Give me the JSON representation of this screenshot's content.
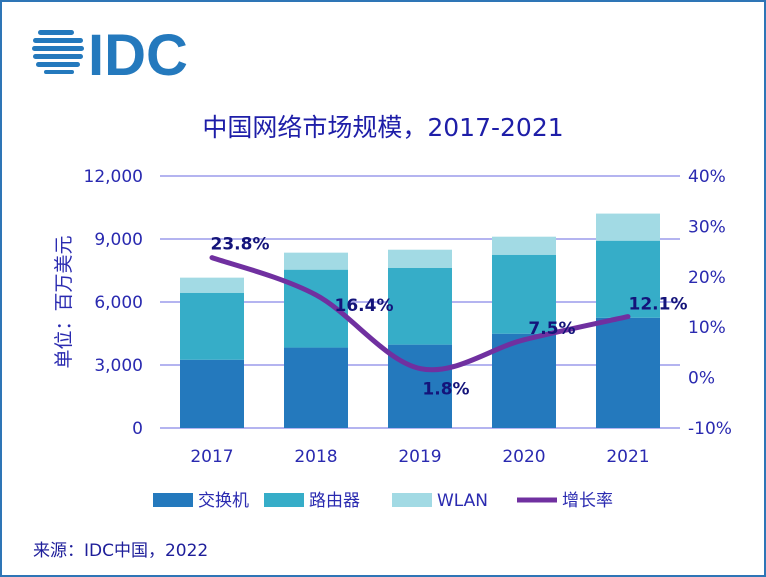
{
  "logo_text": "IDC",
  "source": "来源：IDC中国，2022",
  "colors": {
    "switch": "#2479BD",
    "router": "#36ADC8",
    "wlan": "#A2DAE4",
    "growth": "#7030A0",
    "text": "#2A2AB0",
    "labels": "#14147A",
    "grid": "#B4B4F0",
    "frame": "#2E75B6"
  },
  "chart_data": {
    "type": "bar",
    "stacked": true,
    "title": "中国网络市场规模，2017-2021",
    "ylabel": "单位：百万美元",
    "categories": [
      "2017",
      "2018",
      "2019",
      "2020",
      "2021"
    ],
    "ylim": [
      0,
      12000
    ],
    "yticks": [
      "0",
      "3,000",
      "6,000",
      "9,000",
      "12,000"
    ],
    "y2lim": [
      -10,
      40
    ],
    "y2ticks": [
      "-10%",
      "0%",
      "10%",
      "20%",
      "30%",
      "40%"
    ],
    "grid": true,
    "legend_position": "bottom",
    "series": [
      {
        "name": "交换机",
        "values": [
          3250,
          3830,
          3970,
          4490,
          5250
        ]
      },
      {
        "name": "路由器",
        "values": [
          3190,
          3710,
          3660,
          3760,
          3670
        ]
      },
      {
        "name": "WLAN",
        "values": [
          720,
          810,
          860,
          860,
          1290
        ]
      }
    ],
    "line_series": {
      "name": "增长率",
      "axis": "right",
      "values": [
        23.8,
        16.4,
        1.8,
        7.5,
        12.1
      ],
      "labels": [
        "23.8%",
        "16.4%",
        "1.8%",
        "7.5%",
        "12.1%"
      ]
    }
  }
}
